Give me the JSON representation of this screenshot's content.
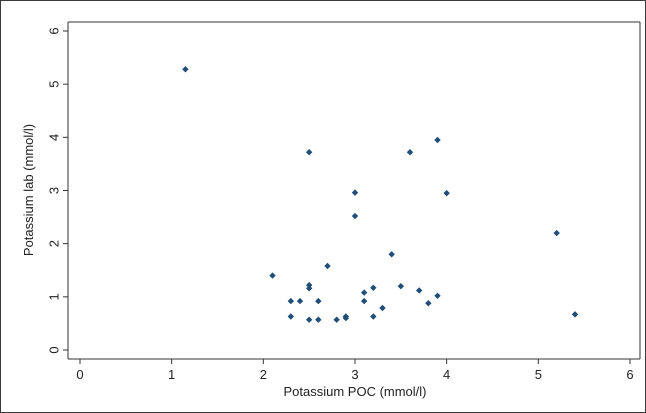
{
  "chart_data": {
    "type": "scatter",
    "title": "",
    "xlabel": "Potassium POC (mmol/l)",
    "ylabel": "Potassium lab (mmol/l)",
    "xlim": [
      0,
      6
    ],
    "ylim": [
      0,
      6
    ],
    "xticks": [
      0,
      1,
      2,
      3,
      4,
      5,
      6
    ],
    "yticks": [
      0,
      1,
      2,
      3,
      4,
      5,
      6
    ],
    "grid": false,
    "legend": "none",
    "marker_color": "#1f4e79",
    "marker": "diamond",
    "points": [
      {
        "x": 1.15,
        "y": 5.28
      },
      {
        "x": 2.1,
        "y": 1.4
      },
      {
        "x": 2.3,
        "y": 0.92
      },
      {
        "x": 2.3,
        "y": 0.63
      },
      {
        "x": 2.4,
        "y": 0.92
      },
      {
        "x": 2.5,
        "y": 1.22
      },
      {
        "x": 2.5,
        "y": 1.16
      },
      {
        "x": 2.5,
        "y": 0.57
      },
      {
        "x": 2.5,
        "y": 3.72
      },
      {
        "x": 2.6,
        "y": 0.92
      },
      {
        "x": 2.6,
        "y": 0.57
      },
      {
        "x": 2.7,
        "y": 1.58
      },
      {
        "x": 2.8,
        "y": 0.57
      },
      {
        "x": 2.9,
        "y": 0.63
      },
      {
        "x": 2.9,
        "y": 0.6
      },
      {
        "x": 3.0,
        "y": 2.96
      },
      {
        "x": 3.0,
        "y": 2.52
      },
      {
        "x": 3.1,
        "y": 1.08
      },
      {
        "x": 3.1,
        "y": 0.92
      },
      {
        "x": 3.2,
        "y": 1.17
      },
      {
        "x": 3.2,
        "y": 0.63
      },
      {
        "x": 3.3,
        "y": 0.79
      },
      {
        "x": 3.4,
        "y": 1.8
      },
      {
        "x": 3.5,
        "y": 1.2
      },
      {
        "x": 3.6,
        "y": 3.72
      },
      {
        "x": 3.7,
        "y": 1.12
      },
      {
        "x": 3.8,
        "y": 0.88
      },
      {
        "x": 3.9,
        "y": 3.95
      },
      {
        "x": 3.9,
        "y": 1.02
      },
      {
        "x": 4.0,
        "y": 2.95
      },
      {
        "x": 5.2,
        "y": 2.2
      },
      {
        "x": 5.4,
        "y": 0.67
      }
    ]
  }
}
